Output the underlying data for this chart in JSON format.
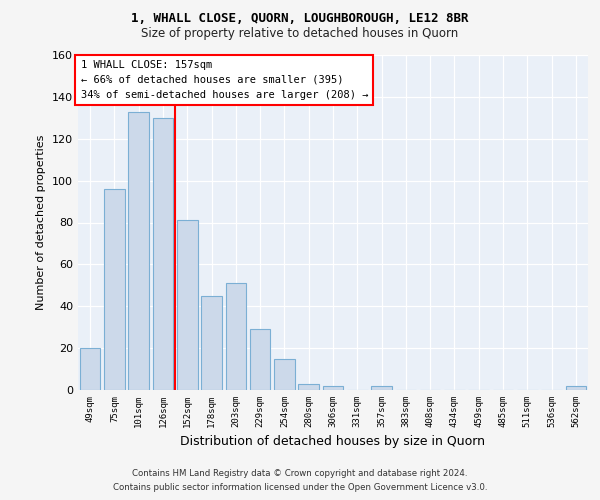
{
  "title1": "1, WHALL CLOSE, QUORN, LOUGHBOROUGH, LE12 8BR",
  "title2": "Size of property relative to detached houses in Quorn",
  "xlabel": "Distribution of detached houses by size in Quorn",
  "ylabel": "Number of detached properties",
  "categories": [
    "49sqm",
    "75sqm",
    "101sqm",
    "126sqm",
    "152sqm",
    "178sqm",
    "203sqm",
    "229sqm",
    "254sqm",
    "280sqm",
    "306sqm",
    "331sqm",
    "357sqm",
    "383sqm",
    "408sqm",
    "434sqm",
    "459sqm",
    "485sqm",
    "511sqm",
    "536sqm",
    "562sqm"
  ],
  "values": [
    20,
    96,
    133,
    130,
    81,
    45,
    51,
    29,
    15,
    3,
    2,
    0,
    2,
    0,
    0,
    0,
    0,
    0,
    0,
    0,
    2
  ],
  "bar_color": "#ccd9ea",
  "bar_edge_color": "#7bafd4",
  "property_line_label": "1 WHALL CLOSE: 157sqm",
  "annotation_line1": "← 66% of detached houses are smaller (395)",
  "annotation_line2": "34% of semi-detached houses are larger (208) →",
  "ylim": [
    0,
    160
  ],
  "yticks": [
    0,
    20,
    40,
    60,
    80,
    100,
    120,
    140,
    160
  ],
  "footer1": "Contains HM Land Registry data © Crown copyright and database right 2024.",
  "footer2": "Contains public sector information licensed under the Open Government Licence v3.0.",
  "bg_color": "#f5f5f5",
  "plot_bg_color": "#eaf0f8"
}
